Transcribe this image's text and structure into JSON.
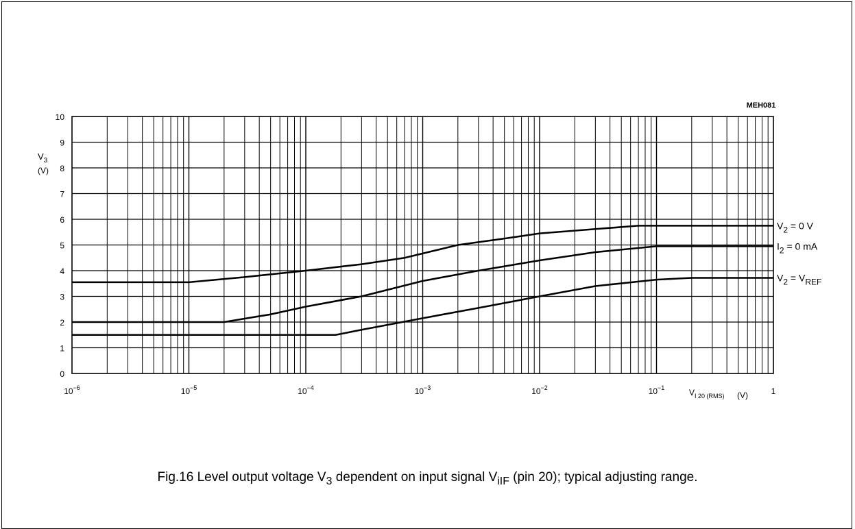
{
  "figure_id": "MEH081",
  "caption": {
    "prefix": "Fig.16  Level output voltage V",
    "v_sub": "3",
    "middle": " dependent on input signal V",
    "vi_sub": "iIF",
    "suffix": " (pin 20); typical adjusting range."
  },
  "y_axis": {
    "symbol": "V",
    "sub": "3",
    "unit": "(V)"
  },
  "x_axis": {
    "symbol": "V",
    "sub": "I 20 (RMS)",
    "unit": "(V)"
  },
  "x_tick_labels": [
    {
      "base": "10",
      "exp": "−6"
    },
    {
      "base": "10",
      "exp": "−5"
    },
    {
      "base": "10",
      "exp": "−4"
    },
    {
      "base": "10",
      "exp": "−3"
    },
    {
      "base": "10",
      "exp": "−2"
    },
    {
      "base": "10",
      "exp": "−1"
    },
    {
      "base": "1",
      "exp": ""
    }
  ],
  "y_tick_labels": [
    "0",
    "1",
    "2",
    "3",
    "4",
    "5",
    "6",
    "7",
    "8",
    "9",
    "10"
  ],
  "chart_data": {
    "type": "line",
    "xscale": "log",
    "xlim": [
      1e-06,
      1
    ],
    "ylim": [
      0,
      10
    ],
    "grid": true,
    "series": [
      {
        "name": "V2 = 0 V",
        "label": {
          "main": "V",
          "sub": "2",
          "rest": " = 0 V",
          "rest_sub": ""
        },
        "points": [
          [
            1e-06,
            3.55
          ],
          [
            1e-05,
            3.55
          ],
          [
            3e-05,
            3.75
          ],
          [
            0.0001,
            4.0
          ],
          [
            0.0003,
            4.25
          ],
          [
            0.0007,
            4.5
          ],
          [
            0.002,
            5.0
          ],
          [
            0.005,
            5.25
          ],
          [
            0.01,
            5.45
          ],
          [
            0.03,
            5.62
          ],
          [
            0.07,
            5.75
          ],
          [
            0.1,
            5.75
          ],
          [
            1,
            5.75
          ]
        ]
      },
      {
        "name": "I2 = 0 mA",
        "label": {
          "main": "I",
          "sub": "2",
          "rest": " = 0 mA",
          "rest_sub": ""
        },
        "points": [
          [
            1e-06,
            2.0
          ],
          [
            2e-05,
            2.0
          ],
          [
            5e-05,
            2.3
          ],
          [
            0.0001,
            2.6
          ],
          [
            0.0003,
            3.0
          ],
          [
            0.001,
            3.6
          ],
          [
            0.003,
            4.0
          ],
          [
            0.01,
            4.4
          ],
          [
            0.03,
            4.72
          ],
          [
            0.1,
            4.95
          ],
          [
            1,
            4.95
          ]
        ]
      },
      {
        "name": "V2 = VREF",
        "label": {
          "main": "V",
          "sub": "2",
          "rest": " = V",
          "rest_sub": "REF"
        },
        "points": [
          [
            1e-06,
            1.5
          ],
          [
            0.00018,
            1.5
          ],
          [
            0.0003,
            1.7
          ],
          [
            0.001,
            2.15
          ],
          [
            0.003,
            2.55
          ],
          [
            0.01,
            3.0
          ],
          [
            0.03,
            3.4
          ],
          [
            0.1,
            3.65
          ],
          [
            0.2,
            3.72
          ],
          [
            1,
            3.72
          ]
        ]
      }
    ]
  }
}
